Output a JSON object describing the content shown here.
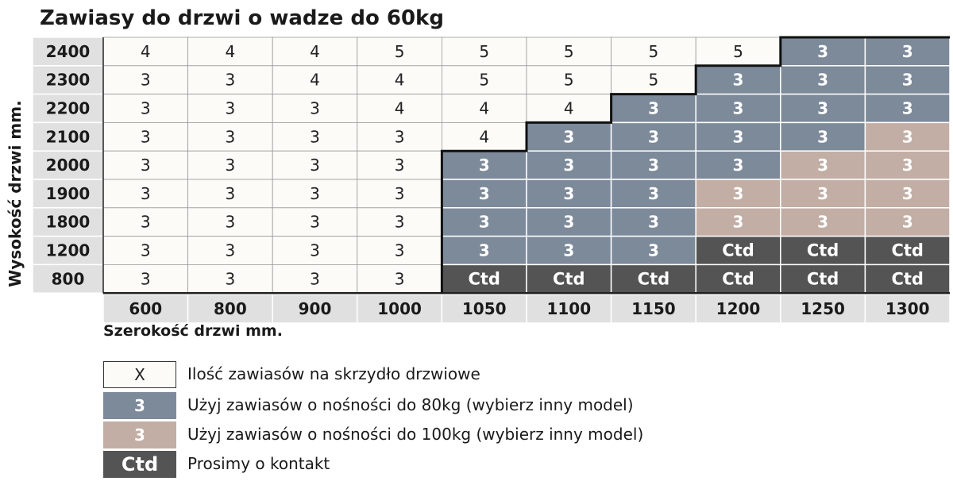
{
  "title": "Zawiasy do drzwi o wadze do 60kg",
  "colors": {
    "white": "#fcfbf7",
    "blue": "#7d8a9a",
    "pink": "#c2aea4",
    "dark": "#545454",
    "header": "#e0e0e0"
  },
  "chart_data": {
    "type": "table",
    "title": "Zawiasy do drzwi o wadze do 60kg",
    "xlabel": "Szerokość drzwi mm.",
    "ylabel": "Wysokość drzwi mm.",
    "columns": [
      "600",
      "800",
      "900",
      "1000",
      "1050",
      "1100",
      "1150",
      "1200",
      "1250",
      "1300"
    ],
    "rows": [
      {
        "height": "2400",
        "values": [
          "4",
          "4",
          "4",
          "5",
          "5",
          "5",
          "5",
          "5",
          "3",
          "3"
        ],
        "categories": [
          "white",
          "white",
          "white",
          "white",
          "white",
          "white",
          "white",
          "white",
          "blue",
          "blue"
        ]
      },
      {
        "height": "2300",
        "values": [
          "3",
          "3",
          "4",
          "4",
          "5",
          "5",
          "5",
          "3",
          "3",
          "3"
        ],
        "categories": [
          "white",
          "white",
          "white",
          "white",
          "white",
          "white",
          "white",
          "blue",
          "blue",
          "blue"
        ]
      },
      {
        "height": "2200",
        "values": [
          "3",
          "3",
          "3",
          "4",
          "4",
          "4",
          "3",
          "3",
          "3",
          "3"
        ],
        "categories": [
          "white",
          "white",
          "white",
          "white",
          "white",
          "white",
          "blue",
          "blue",
          "blue",
          "blue"
        ]
      },
      {
        "height": "2100",
        "values": [
          "3",
          "3",
          "3",
          "3",
          "4",
          "3",
          "3",
          "3",
          "3",
          "3"
        ],
        "categories": [
          "white",
          "white",
          "white",
          "white",
          "white",
          "blue",
          "blue",
          "blue",
          "blue",
          "pink"
        ]
      },
      {
        "height": "2000",
        "values": [
          "3",
          "3",
          "3",
          "3",
          "3",
          "3",
          "3",
          "3",
          "3",
          "3"
        ],
        "categories": [
          "white",
          "white",
          "white",
          "white",
          "blue",
          "blue",
          "blue",
          "blue",
          "pink",
          "pink"
        ]
      },
      {
        "height": "1900",
        "values": [
          "3",
          "3",
          "3",
          "3",
          "3",
          "3",
          "3",
          "3",
          "3",
          "3"
        ],
        "categories": [
          "white",
          "white",
          "white",
          "white",
          "blue",
          "blue",
          "blue",
          "pink",
          "pink",
          "pink"
        ]
      },
      {
        "height": "1800",
        "values": [
          "3",
          "3",
          "3",
          "3",
          "3",
          "3",
          "3",
          "3",
          "3",
          "3"
        ],
        "categories": [
          "white",
          "white",
          "white",
          "white",
          "blue",
          "blue",
          "blue",
          "pink",
          "pink",
          "pink"
        ]
      },
      {
        "height": "1200",
        "values": [
          "3",
          "3",
          "3",
          "3",
          "3",
          "3",
          "3",
          "Ctd",
          "Ctd",
          "Ctd"
        ],
        "categories": [
          "white",
          "white",
          "white",
          "white",
          "blue",
          "blue",
          "blue",
          "dark",
          "dark",
          "dark"
        ]
      },
      {
        "height": "800",
        "values": [
          "3",
          "3",
          "3",
          "3",
          "Ctd",
          "Ctd",
          "Ctd",
          "Ctd",
          "Ctd",
          "Ctd"
        ],
        "categories": [
          "white",
          "white",
          "white",
          "white",
          "dark",
          "dark",
          "dark",
          "dark",
          "dark",
          "dark"
        ]
      }
    ]
  },
  "legend": [
    {
      "symbol": "X",
      "category": "white",
      "text": "Ilość zawiasów na skrzydło drzwiowe"
    },
    {
      "symbol": "3",
      "category": "blue",
      "text": "Użyj zawiasów o nośności do 80kg (wybierz inny model)"
    },
    {
      "symbol": "3",
      "category": "pink",
      "text": "Użyj zawiasów o nośności do 100kg (wybierz inny model)"
    },
    {
      "symbol": "Ctd",
      "category": "dark",
      "text": "Prosimy o kontakt"
    }
  ]
}
